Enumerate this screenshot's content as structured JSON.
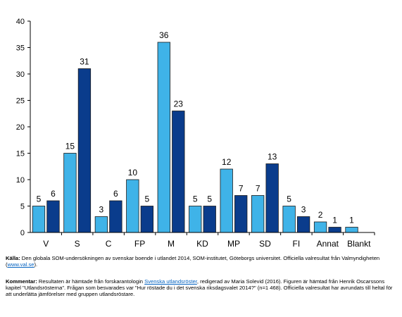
{
  "chart_data": {
    "type": "bar",
    "categories": [
      "V",
      "S",
      "C",
      "FP",
      "M",
      "KD",
      "MP",
      "SD",
      "FI",
      "Annat",
      "Blankt"
    ],
    "series": [
      {
        "values": [
          5,
          15,
          3,
          10,
          36,
          5,
          12,
          7,
          5,
          2,
          1
        ],
        "color": "#3fb3e8"
      },
      {
        "values": [
          6,
          31,
          6,
          5,
          23,
          5,
          7,
          13,
          3,
          1,
          null
        ],
        "color": "#0a3c8c"
      }
    ],
    "ylim": [
      0,
      40
    ],
    "yticks": [
      0,
      5,
      10,
      15,
      20,
      25,
      30,
      35,
      40
    ],
    "grid": false,
    "xlabel": "",
    "ylabel": "",
    "title": ""
  },
  "footer": {
    "source_label": "Källa:",
    "source_text": " Den globala SOM-undersökningen av svenskar boende i utlandet 2014, SOM-institutet, Göteborgs universitet. Officiella valresultat från Valmyndigheten (",
    "source_link": "www.val.se",
    "source_end": ").",
    "comment_label": "Kommentar:",
    "comment_text1": " Resultaten är hämtade från forskarantologin ",
    "comment_link": "Svenska utlandsröster",
    "comment_text2": ", redigerad av Maria Solevid (2016). Figuren är hämtad från Henrik Oscarssons kapitel \"Utlandsrösterna\". Frågan som besvarades var \"Hur röstade du i det svenska riksdagsvalet 2014?\" (n=1 468). Officiella valresultat har avrundats till heltal för att underlätta jämförelser med gruppen utlandsröstare."
  }
}
